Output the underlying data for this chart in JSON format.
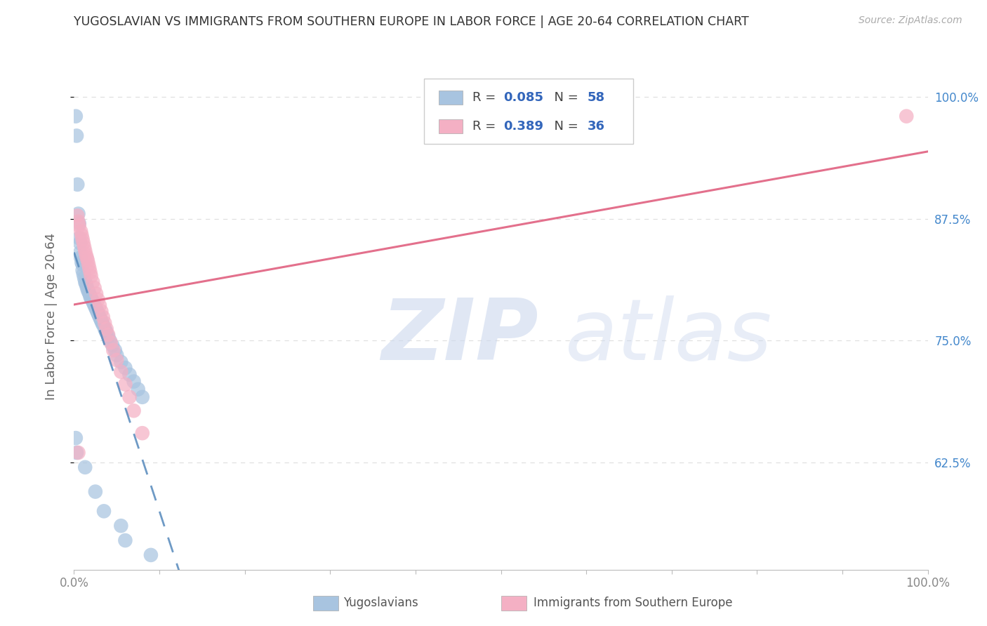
{
  "title": "YUGOSLAVIAN VS IMMIGRANTS FROM SOUTHERN EUROPE IN LABOR FORCE | AGE 20-64 CORRELATION CHART",
  "source": "Source: ZipAtlas.com",
  "ylabel": "In Labor Force | Age 20-64",
  "xlim": [
    0.0,
    1.0
  ],
  "ylim": [
    0.515,
    1.035
  ],
  "yticks": [
    0.625,
    0.75,
    0.875,
    1.0
  ],
  "ytick_labels": [
    "62.5%",
    "75.0%",
    "87.5%",
    "100.0%"
  ],
  "R_blue": 0.085,
  "N_blue": 58,
  "R_pink": 0.389,
  "N_pink": 36,
  "blue_color": "#a8c4e0",
  "pink_color": "#f4b0c4",
  "blue_line_color": "#5588bb",
  "pink_line_color": "#e06080",
  "legend_color": "#3366bb",
  "right_tick_color": "#4488cc",
  "background_color": "#ffffff",
  "grid_color": "#e0e0e0",
  "title_color": "#333333",
  "axis_label_color": "#666666",
  "blue_x": [
    0.002,
    0.003,
    0.004,
    0.005,
    0.006,
    0.006,
    0.007,
    0.007,
    0.008,
    0.009,
    0.01,
    0.01,
    0.011,
    0.012,
    0.013,
    0.014,
    0.015,
    0.016,
    0.017,
    0.018,
    0.019,
    0.02,
    0.021,
    0.022,
    0.023,
    0.024,
    0.025,
    0.026,
    0.027,
    0.028,
    0.029,
    0.03,
    0.031,
    0.032,
    0.033,
    0.034,
    0.036,
    0.037,
    0.038,
    0.04,
    0.042,
    0.045,
    0.048,
    0.05,
    0.055,
    0.06,
    0.065,
    0.07,
    0.075,
    0.08,
    0.002,
    0.003,
    0.013,
    0.025,
    0.035,
    0.055,
    0.06,
    0.09
  ],
  "blue_y": [
    0.98,
    0.96,
    0.91,
    0.88,
    0.87,
    0.855,
    0.85,
    0.84,
    0.835,
    0.83,
    0.828,
    0.822,
    0.818,
    0.814,
    0.81,
    0.808,
    0.805,
    0.802,
    0.8,
    0.798,
    0.795,
    0.793,
    0.792,
    0.79,
    0.788,
    0.786,
    0.784,
    0.782,
    0.78,
    0.778,
    0.776,
    0.774,
    0.772,
    0.77,
    0.768,
    0.766,
    0.762,
    0.76,
    0.758,
    0.754,
    0.75,
    0.745,
    0.74,
    0.735,
    0.728,
    0.722,
    0.715,
    0.708,
    0.7,
    0.692,
    0.65,
    0.635,
    0.62,
    0.595,
    0.575,
    0.56,
    0.545,
    0.53
  ],
  "pink_x": [
    0.004,
    0.005,
    0.006,
    0.008,
    0.009,
    0.01,
    0.011,
    0.012,
    0.013,
    0.014,
    0.015,
    0.016,
    0.017,
    0.018,
    0.019,
    0.02,
    0.022,
    0.024,
    0.026,
    0.028,
    0.03,
    0.032,
    0.034,
    0.036,
    0.038,
    0.04,
    0.043,
    0.046,
    0.05,
    0.055,
    0.06,
    0.065,
    0.07,
    0.08,
    0.975,
    0.005
  ],
  "pink_y": [
    0.878,
    0.872,
    0.868,
    0.862,
    0.858,
    0.854,
    0.85,
    0.846,
    0.842,
    0.838,
    0.835,
    0.832,
    0.828,
    0.824,
    0.82,
    0.816,
    0.81,
    0.804,
    0.798,
    0.792,
    0.786,
    0.78,
    0.774,
    0.768,
    0.762,
    0.756,
    0.748,
    0.74,
    0.73,
    0.718,
    0.705,
    0.692,
    0.678,
    0.655,
    0.98,
    0.635
  ],
  "watermark_color": "#ccd8ee"
}
